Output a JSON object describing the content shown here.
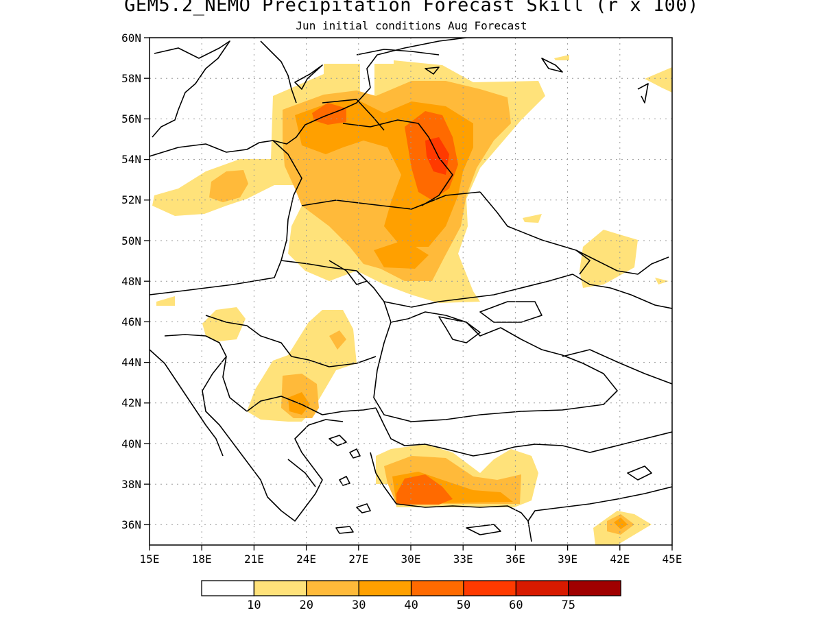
{
  "title": "GEM5.2_NEMO Precipitation Forecast Skill (r x 100)",
  "subtitle": "Jun initial conditions  Aug Forecast",
  "map": {
    "lon_range": [
      15,
      45
    ],
    "lat_range": [
      35,
      60
    ],
    "gridlines": "dotted",
    "lat_ticks": [
      "60N",
      "58N",
      "56N",
      "54N",
      "52N",
      "50N",
      "48N",
      "46N",
      "44N",
      "42N",
      "40N",
      "38N",
      "36N"
    ],
    "lon_ticks": [
      "15E",
      "18E",
      "21E",
      "24E",
      "27E",
      "30E",
      "33E",
      "36E",
      "39E",
      "42E",
      "45E"
    ]
  },
  "colorbar": {
    "colors": [
      "#ffffff",
      "#ffe27a",
      "#ffba3a",
      "#ffa000",
      "#ff6a00",
      "#ff3a00",
      "#d81a00",
      "#a00000"
    ],
    "labels": [
      "10",
      "20",
      "30",
      "40",
      "50",
      "60",
      "75"
    ]
  }
}
